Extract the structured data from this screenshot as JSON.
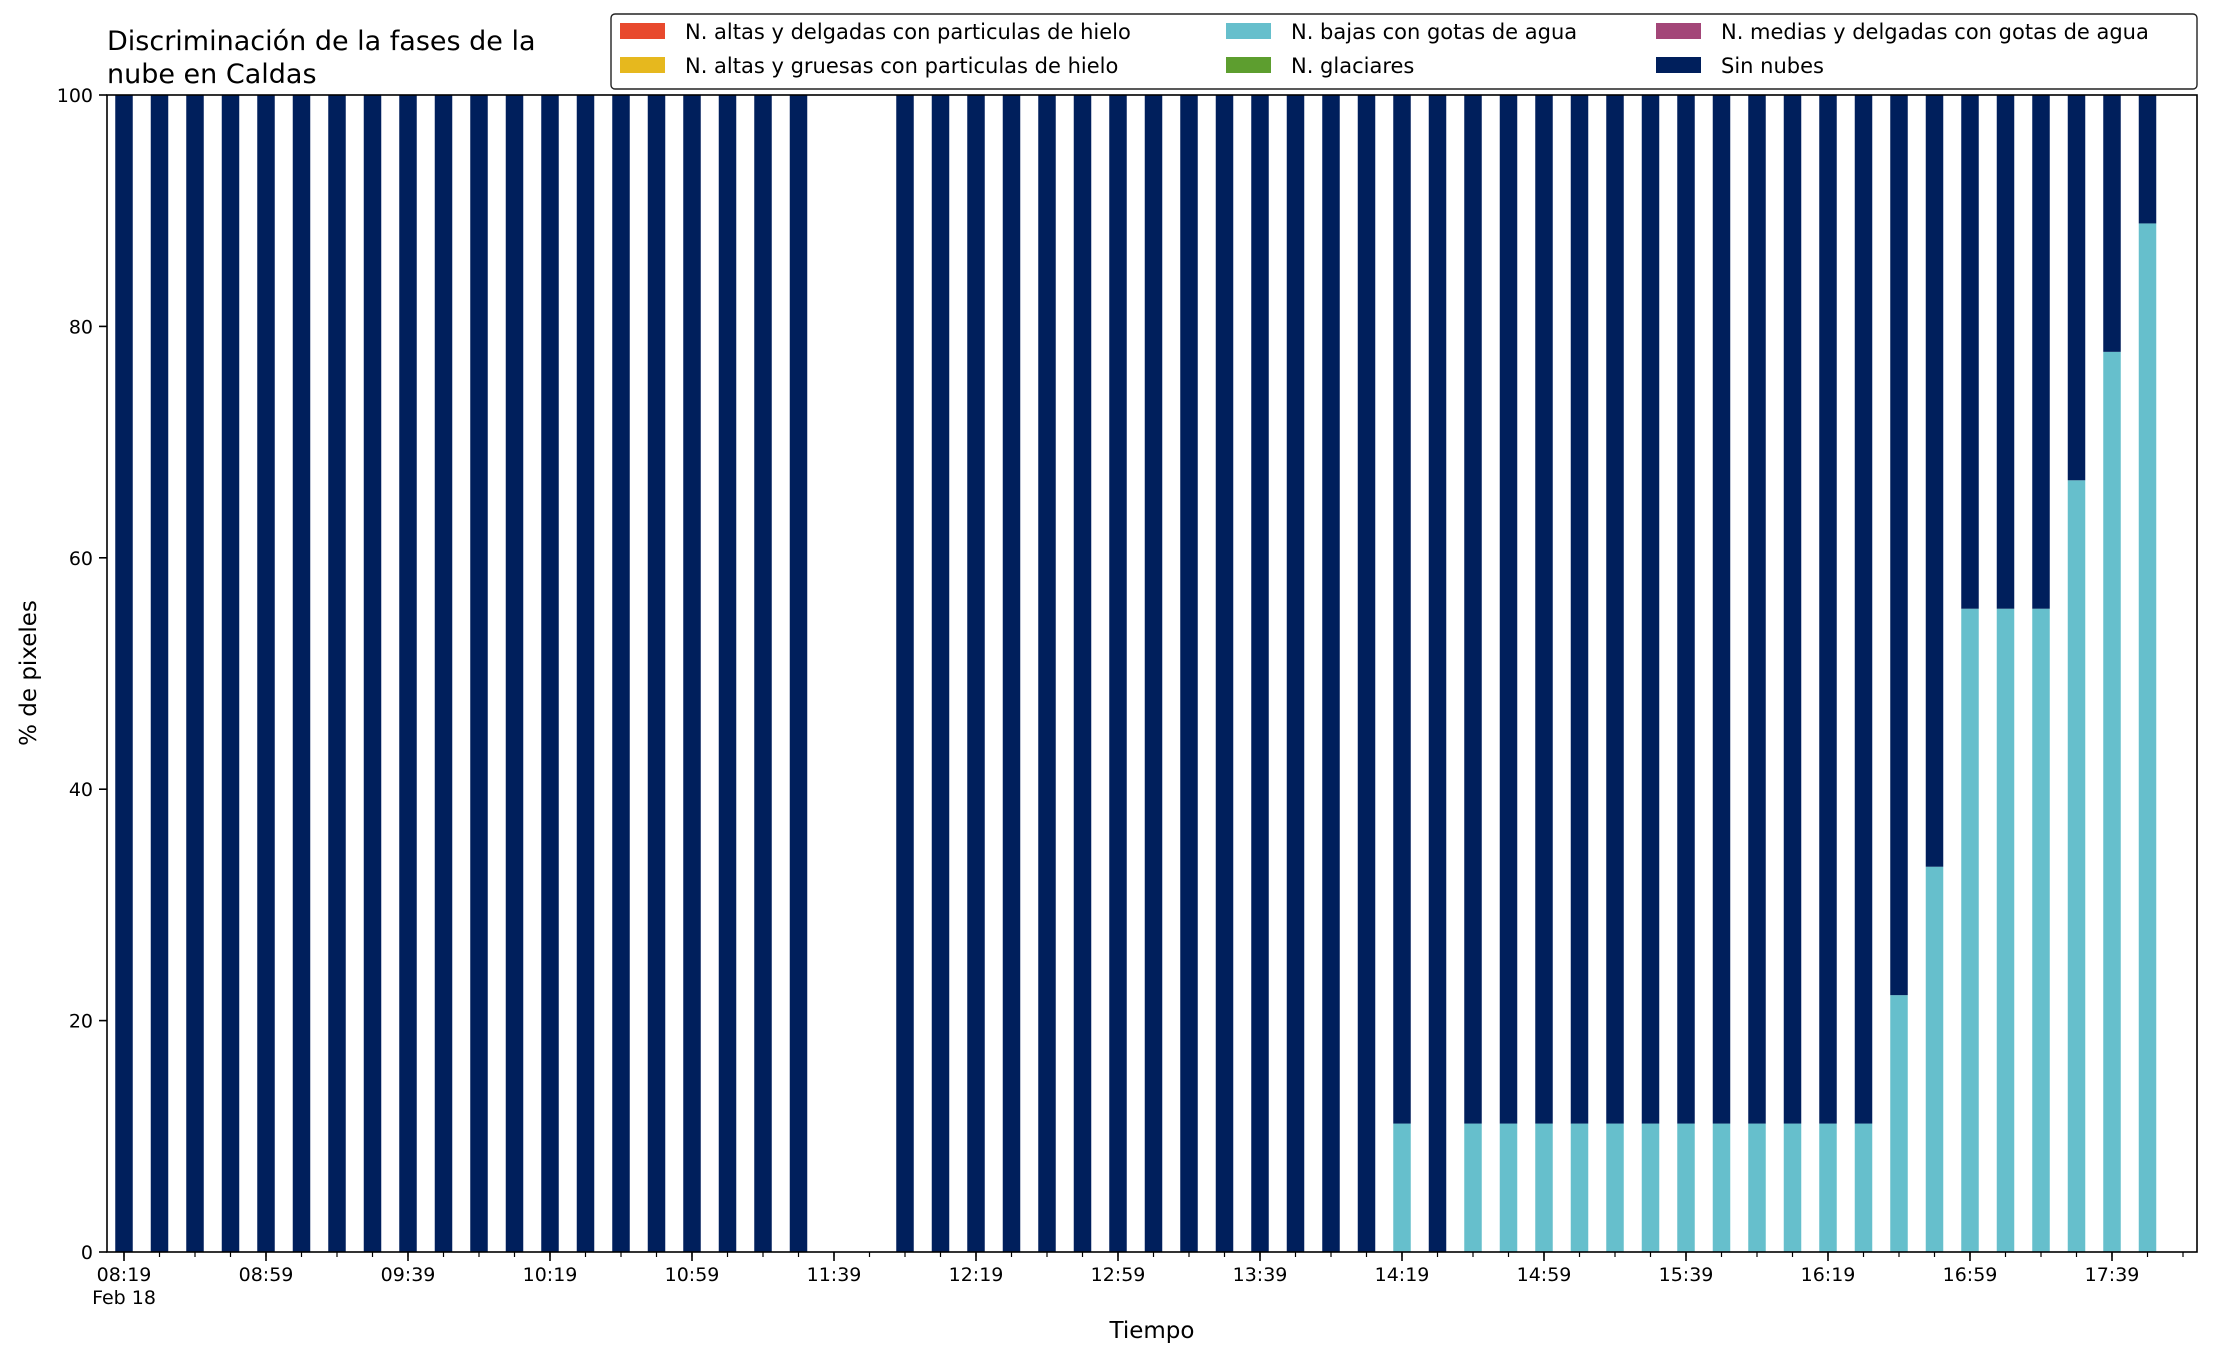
{
  "chart_data": {
    "type": "bar",
    "stacked": true,
    "title": "Discriminación de la fases de la\nnube en Caldas",
    "xlabel": "Tiempo",
    "ylabel": "% de pixeles",
    "ylim": [
      0,
      100
    ],
    "yticks": [
      "0",
      "20",
      "40",
      "60",
      "80",
      "100"
    ],
    "grid": false,
    "legend_position": "top-right",
    "x_tick_labels": [
      "08:19\nFeb 18",
      "08:59",
      "09:39",
      "10:19",
      "10:59",
      "11:39",
      "12:19",
      "12:59",
      "13:39",
      "14:19",
      "14:59",
      "15:39",
      "16:19",
      "16:59",
      "17:39"
    ],
    "categories": [
      "08:19",
      "08:29",
      "08:39",
      "08:49",
      "08:59",
      "09:09",
      "09:19",
      "09:29",
      "09:39",
      "09:49",
      "09:59",
      "10:09",
      "10:19",
      "10:29",
      "10:39",
      "10:49",
      "10:59",
      "11:09",
      "11:19",
      "11:29",
      "11:39",
      "11:49",
      "11:59",
      "12:09",
      "12:19",
      "12:29",
      "12:39",
      "12:49",
      "12:59",
      "13:09",
      "13:19",
      "13:29",
      "13:39",
      "13:49",
      "13:59",
      "14:09",
      "14:19",
      "14:29",
      "14:39",
      "14:49",
      "14:59",
      "15:09",
      "15:19",
      "15:29",
      "15:39",
      "15:49",
      "15:59",
      "16:09",
      "16:19",
      "16:29",
      "16:39",
      "16:49",
      "16:59",
      "17:09",
      "17:19",
      "17:29",
      "17:39",
      "17:49"
    ],
    "series": [
      {
        "name": "N. altas y delgadas con particulas de hielo",
        "color": "#e8492d",
        "values": [
          0,
          0,
          0,
          0,
          0,
          0,
          0,
          0,
          0,
          0,
          0,
          0,
          0,
          0,
          0,
          0,
          0,
          0,
          0,
          0,
          null,
          null,
          0,
          0,
          0,
          0,
          0,
          0,
          0,
          0,
          0,
          0,
          0,
          0,
          0,
          0,
          0,
          0,
          0,
          0,
          0,
          0,
          0,
          0,
          0,
          0,
          0,
          0,
          0,
          0,
          0,
          0,
          0,
          0,
          0,
          0,
          0,
          0
        ]
      },
      {
        "name": "N. altas y gruesas con particulas de hielo",
        "color": "#e6b81e",
        "values": [
          0,
          0,
          0,
          0,
          0,
          0,
          0,
          0,
          0,
          0,
          0,
          0,
          0,
          0,
          0,
          0,
          0,
          0,
          0,
          0,
          null,
          null,
          0,
          0,
          0,
          0,
          0,
          0,
          0,
          0,
          0,
          0,
          0,
          0,
          0,
          0,
          0,
          0,
          0,
          0,
          0,
          0,
          0,
          0,
          0,
          0,
          0,
          0,
          0,
          0,
          0,
          0,
          0,
          0,
          0,
          0,
          0,
          0
        ]
      },
      {
        "name": "N. bajas con gotas de agua",
        "color": "#66bfcc",
        "values": [
          0,
          0,
          0,
          0,
          0,
          0,
          0,
          0,
          0,
          0,
          0,
          0,
          0,
          0,
          0,
          0,
          0,
          0,
          0,
          0,
          null,
          null,
          0,
          0,
          0,
          0,
          0,
          0,
          0,
          0,
          0,
          0,
          0,
          0,
          0,
          0,
          11.1,
          0,
          11.1,
          11.1,
          11.1,
          11.1,
          11.1,
          11.1,
          11.1,
          11.1,
          11.1,
          11.1,
          11.1,
          11.1,
          22.2,
          33.3,
          55.6,
          55.6,
          55.6,
          66.7,
          77.8,
          88.9
        ]
      },
      {
        "name": "N. glaciares",
        "color": "#5d9e2f",
        "values": [
          0,
          0,
          0,
          0,
          0,
          0,
          0,
          0,
          0,
          0,
          0,
          0,
          0,
          0,
          0,
          0,
          0,
          0,
          0,
          0,
          null,
          null,
          0,
          0,
          0,
          0,
          0,
          0,
          0,
          0,
          0,
          0,
          0,
          0,
          0,
          0,
          0,
          0,
          0,
          0,
          0,
          0,
          0,
          0,
          0,
          0,
          0,
          0,
          0,
          0,
          0,
          0,
          0,
          0,
          0,
          0,
          0,
          0
        ]
      },
      {
        "name": "N. medias y delgadas con gotas de agua",
        "color": "#a34678",
        "values": [
          0,
          0,
          0,
          0,
          0,
          0,
          0,
          0,
          0,
          0,
          0,
          0,
          0,
          0,
          0,
          0,
          0,
          0,
          0,
          0,
          null,
          null,
          0,
          0,
          0,
          0,
          0,
          0,
          0,
          0,
          0,
          0,
          0,
          0,
          0,
          0,
          0,
          0,
          0,
          0,
          0,
          0,
          0,
          0,
          0,
          0,
          0,
          0,
          0,
          0,
          0,
          0,
          0,
          0,
          0,
          0,
          0,
          0
        ]
      },
      {
        "name": "Sin nubes",
        "color": "#001f5c",
        "values": [
          100,
          100,
          100,
          100,
          100,
          100,
          100,
          100,
          100,
          100,
          100,
          100,
          100,
          100,
          100,
          100,
          100,
          100,
          100,
          100,
          null,
          null,
          100,
          100,
          100,
          100,
          100,
          100,
          100,
          100,
          100,
          100,
          100,
          100,
          100,
          100,
          88.9,
          100,
          88.9,
          88.9,
          88.9,
          88.9,
          88.9,
          88.9,
          88.9,
          88.9,
          88.9,
          88.9,
          88.9,
          88.9,
          77.8,
          66.7,
          44.4,
          44.4,
          44.4,
          33.3,
          22.2,
          11.1
        ]
      }
    ]
  }
}
